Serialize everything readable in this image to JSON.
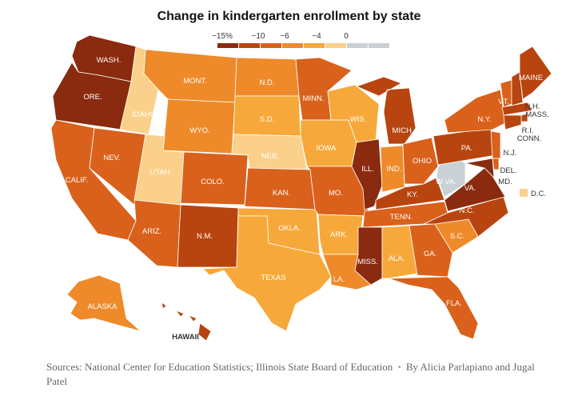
{
  "title": "Change in kindergarten enrollment by state",
  "legend": {
    "ticks": [
      "−15%",
      "−10",
      "−6",
      "−4",
      "0"
    ],
    "colors": [
      "#8a2a0f",
      "#b8440f",
      "#d9611b",
      "#ee8a2a",
      "#f6a93a",
      "#fbd08a",
      "#c9d0d6",
      "#c9d0d6"
    ]
  },
  "colors": {
    "c1": "#8a2a0f",
    "c2": "#b8440f",
    "c3": "#d9611b",
    "c4": "#ee8a2a",
    "c5": "#f6a93a",
    "c6": "#fbd08a",
    "c7": "#c9d0d6"
  },
  "states": [
    {
      "id": "WA",
      "label": "WASH.",
      "bin": "c1"
    },
    {
      "id": "OR",
      "label": "ORE.",
      "bin": "c1"
    },
    {
      "id": "CA",
      "label": "CALIF.",
      "bin": "c3"
    },
    {
      "id": "NV",
      "label": "NEV.",
      "bin": "c3"
    },
    {
      "id": "ID",
      "label": "IDAHO",
      "bin": "c6"
    },
    {
      "id": "MT",
      "label": "MONT.",
      "bin": "c4"
    },
    {
      "id": "WY",
      "label": "WYO.",
      "bin": "c4"
    },
    {
      "id": "UT",
      "label": "UTAH",
      "bin": "c6"
    },
    {
      "id": "AZ",
      "label": "ARIZ.",
      "bin": "c3"
    },
    {
      "id": "CO",
      "label": "COLO.",
      "bin": "c3"
    },
    {
      "id": "NM",
      "label": "N.M.",
      "bin": "c2"
    },
    {
      "id": "ND",
      "label": "N.D.",
      "bin": "c4"
    },
    {
      "id": "SD",
      "label": "S.D.",
      "bin": "c5"
    },
    {
      "id": "NE",
      "label": "NEB.",
      "bin": "c6"
    },
    {
      "id": "KS",
      "label": "KAN.",
      "bin": "c3"
    },
    {
      "id": "OK",
      "label": "OKLA.",
      "bin": "c5"
    },
    {
      "id": "TX",
      "label": "TEXAS",
      "bin": "c5"
    },
    {
      "id": "MN",
      "label": "MINN.",
      "bin": "c3"
    },
    {
      "id": "IA",
      "label": "IOWA",
      "bin": "c5"
    },
    {
      "id": "MO",
      "label": "MO.",
      "bin": "c3"
    },
    {
      "id": "AR",
      "label": "ARK.",
      "bin": "c5"
    },
    {
      "id": "LA",
      "label": "LA.",
      "bin": "c4"
    },
    {
      "id": "WI",
      "label": "WIS.",
      "bin": "c5"
    },
    {
      "id": "IL",
      "label": "ILL.",
      "bin": "c1"
    },
    {
      "id": "MS",
      "label": "MISS.",
      "bin": "c1"
    },
    {
      "id": "MI",
      "label": "MICH.",
      "bin": "c2"
    },
    {
      "id": "IN",
      "label": "IND.",
      "bin": "c4"
    },
    {
      "id": "OH",
      "label": "OHIO",
      "bin": "c3"
    },
    {
      "id": "KY",
      "label": "KY.",
      "bin": "c2"
    },
    {
      "id": "TN",
      "label": "TENN.",
      "bin": "c3"
    },
    {
      "id": "AL",
      "label": "ALA.",
      "bin": "c5"
    },
    {
      "id": "GA",
      "label": "GA.",
      "bin": "c3"
    },
    {
      "id": "FL",
      "label": "FLA.",
      "bin": "c3"
    },
    {
      "id": "SC",
      "label": "S.C.",
      "bin": "c4"
    },
    {
      "id": "NC",
      "label": "N.C.",
      "bin": "c2"
    },
    {
      "id": "VA",
      "label": "VA.",
      "bin": "c1"
    },
    {
      "id": "WV",
      "label": "W.VA.",
      "bin": "c7"
    },
    {
      "id": "PA",
      "label": "PA.",
      "bin": "c2"
    },
    {
      "id": "NY",
      "label": "N.Y.",
      "bin": "c3"
    },
    {
      "id": "VT",
      "label": "VT.",
      "bin": "c3"
    },
    {
      "id": "NH",
      "label": "N.H.",
      "bin": "c2"
    },
    {
      "id": "ME",
      "label": "MAINE",
      "bin": "c2"
    },
    {
      "id": "MA",
      "label": "MASS.",
      "bin": "c2"
    },
    {
      "id": "RI",
      "label": "R.I.",
      "bin": "c2"
    },
    {
      "id": "CT",
      "label": "CONN.",
      "bin": "c2"
    },
    {
      "id": "NJ",
      "label": "N.J.",
      "bin": "c3"
    },
    {
      "id": "DE",
      "label": "DEL.",
      "bin": "c3"
    },
    {
      "id": "MD",
      "label": "MD.",
      "bin": "c1"
    },
    {
      "id": "DC",
      "label": "D.C.",
      "bin": "c6"
    },
    {
      "id": "AK",
      "label": "ALASKA",
      "bin": "c4"
    },
    {
      "id": "HI",
      "label": "HAWAII",
      "bin": "c2"
    }
  ],
  "footer": {
    "sources": "Sources: National Center for Education Statistics; Illinois State Board of Education",
    "separator": "•",
    "byline": "By Alicia Parlapiano and Jugal Patel"
  }
}
